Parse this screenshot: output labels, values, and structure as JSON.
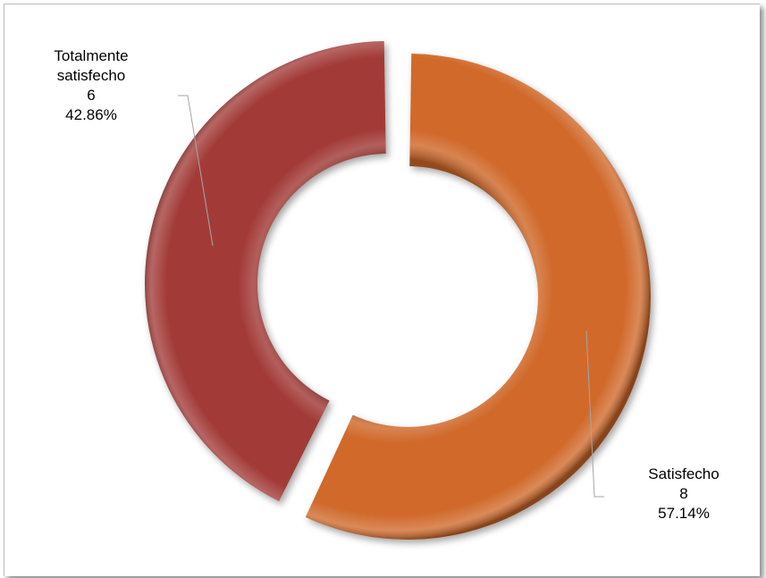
{
  "chart_data": {
    "type": "pie",
    "subtype": "doughnut",
    "categories": [
      "Satisfecho",
      "Totalmente satisfecho"
    ],
    "values": [
      8,
      6
    ],
    "percentages": [
      "57.14%",
      "42.86%"
    ],
    "colors": [
      "#D0692B",
      "#A23A39"
    ],
    "labels": [
      {
        "lines": [
          "Satisfecho",
          "8",
          "57.14%"
        ]
      },
      {
        "lines": [
          "Totalmente",
          "satisfecho",
          "6",
          "42.86%"
        ]
      }
    ],
    "title": "",
    "legend": "none"
  }
}
